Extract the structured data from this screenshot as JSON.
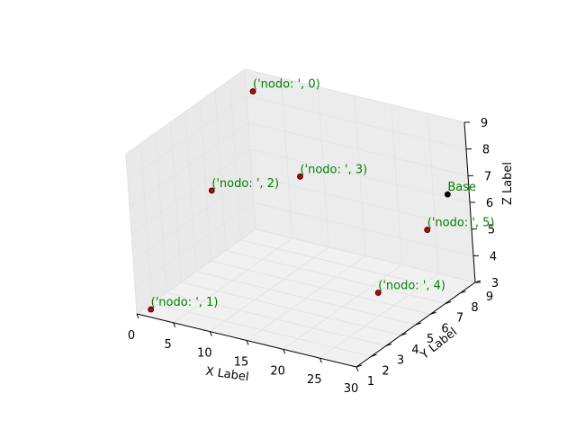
{
  "chart_data": {
    "type": "scatter",
    "projection": "3d",
    "xlabel": "X Label",
    "ylabel": "Y Label",
    "zlabel": "Z Label",
    "xlim": [
      0,
      30
    ],
    "ylim": [
      1,
      9
    ],
    "zlim": [
      3,
      9
    ],
    "xticks": [
      "0",
      "5",
      "10",
      "15",
      "20",
      "25",
      "30"
    ],
    "yticks": [
      "1",
      "2",
      "3",
      "4",
      "5",
      "6",
      "7",
      "8",
      "9"
    ],
    "zticks": [
      "3",
      "4",
      "5",
      "6",
      "7",
      "8",
      "9"
    ],
    "grid": true,
    "label_color": "#008000",
    "points": [
      {
        "label": "('nodo: ', 0)",
        "x": 2,
        "y": 8.5,
        "z": 8.5,
        "color": "#cc0000"
      },
      {
        "label": "('nodo: ', 1)",
        "x": 2,
        "y": 1.0,
        "z": 3.3,
        "color": "#cc0000"
      },
      {
        "label": "('nodo: ', 2)",
        "x": 4,
        "y": 4.5,
        "z": 6.5,
        "color": "#cc0000"
      },
      {
        "label": "('nodo: ', 3)",
        "x": 11,
        "y": 7.0,
        "z": 6.5,
        "color": "#cc0000"
      },
      {
        "label": "('nodo: ', 4)",
        "x": 24,
        "y": 5.5,
        "z": 3.6,
        "color": "#cc0000"
      },
      {
        "label": "('nodo: ', 5)",
        "x": 26,
        "y": 8.0,
        "z": 5.1,
        "color": "#cc0000"
      },
      {
        "label": "Base",
        "x": 27,
        "y": 9.0,
        "z": 6.1,
        "color": "#000000"
      }
    ]
  }
}
